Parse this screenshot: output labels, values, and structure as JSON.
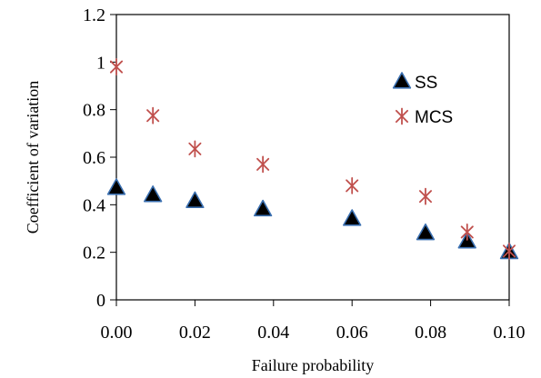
{
  "chart_data": {
    "type": "scatter",
    "xlabel": "Failure probability",
    "ylabel": "Coefficient of variation",
    "xlim": [
      0,
      0.1
    ],
    "ylim": [
      0,
      1.2
    ],
    "x_ticks": [
      "0.00",
      "0.02",
      "0.04",
      "0.06",
      "0.08",
      "0.10"
    ],
    "y_ticks": [
      "0",
      "0.2",
      "0.4",
      "0.6",
      "0.8",
      "1",
      "1.2"
    ],
    "grid": false,
    "legend_position": "top-right inside",
    "series": [
      {
        "name": "SS",
        "marker": "triangle",
        "color": "#000000",
        "edge_color": "#3a6fb0",
        "x": [
          0.0,
          0.0093,
          0.02,
          0.0373,
          0.06,
          0.0787,
          0.0893,
          0.1
        ],
        "y": [
          0.47,
          0.44,
          0.415,
          0.38,
          0.34,
          0.28,
          0.245,
          0.2
        ]
      },
      {
        "name": "MCS",
        "marker": "asterisk",
        "color": "#c0504d",
        "x": [
          0.0,
          0.0093,
          0.02,
          0.0373,
          0.06,
          0.0787,
          0.0893,
          0.1
        ],
        "y": [
          0.98,
          0.775,
          0.635,
          0.57,
          0.48,
          0.435,
          0.285,
          0.205
        ]
      }
    ]
  }
}
